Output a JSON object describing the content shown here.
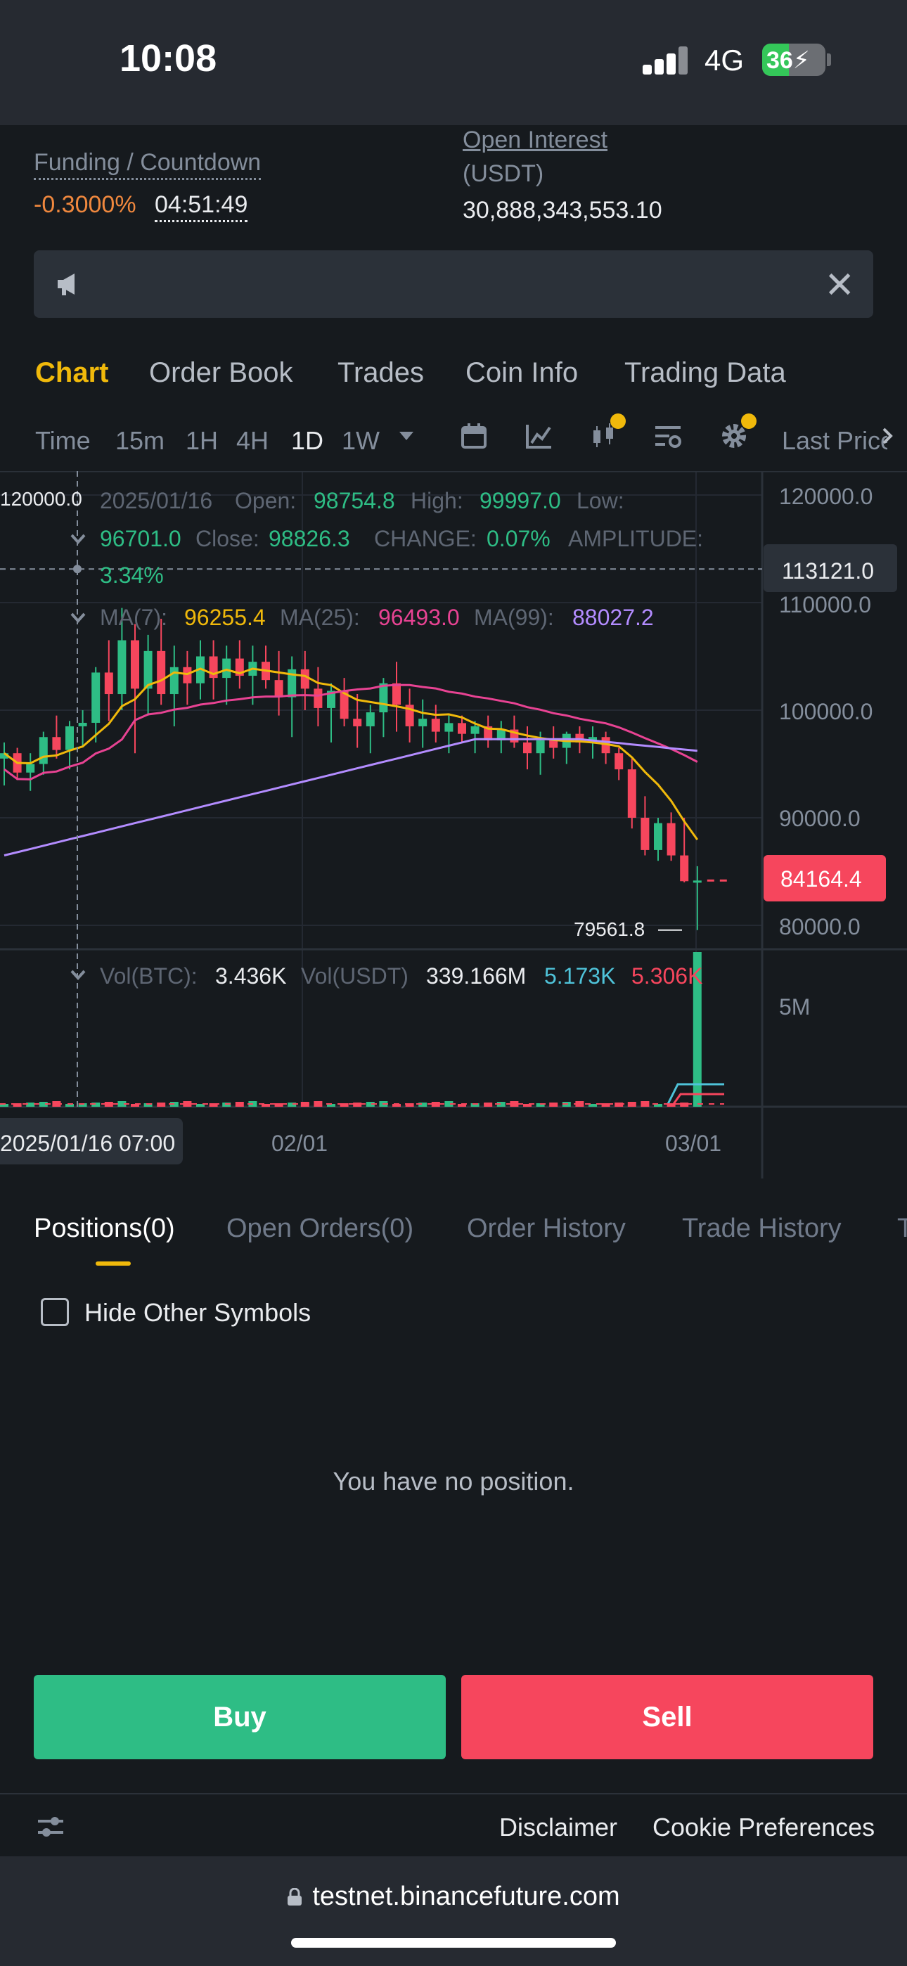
{
  "status_bar": {
    "time": "10:08",
    "network": "4G",
    "battery": "36"
  },
  "info": {
    "funding_label": "Funding / Countdown",
    "funding_rate": "-0.3000%",
    "countdown": "04:51:49",
    "open_interest_label": "Open Interest",
    "open_interest_unit": "(USDT)",
    "open_interest_value": "30,888,343,553.10"
  },
  "tabs": [
    "Chart",
    "Order Book",
    "Trades",
    "Coin Info",
    "Trading Data"
  ],
  "intervals": [
    "Time",
    "15m",
    "1H",
    "4H",
    "1D",
    "1W"
  ],
  "interval_active": "1D",
  "last_price_label": "Last Price",
  "chart": {
    "ohlc": {
      "date": "2025/01/16",
      "open_label": "Open:",
      "open": "98754.8",
      "high_label": "High:",
      "high": "99997.0",
      "low_label": "Low:",
      "low": "96701.0",
      "close_label": "Close:",
      "close": "98826.3",
      "change_label": "CHANGE:",
      "change": "0.07%",
      "amplitude_label": "AMPLITUDE:",
      "amplitude": "3.34%"
    },
    "ma": {
      "ma7_label": "MA(7):",
      "ma7": "96255.4",
      "ma25_label": "MA(25):",
      "ma25": "96493.0",
      "ma99_label": "MA(99):",
      "ma99": "88027.2"
    },
    "volume": {
      "btc_label": "Vol(BTC):",
      "btc": "3.436K",
      "usdt_label": "Vol(USDT)",
      "usdt": "339.166M",
      "v1": "5.173K",
      "v2": "5.306K"
    },
    "crosshair_price": "120000.0",
    "crosshair_level": "113121.0",
    "last_price": "84164.4",
    "low_marker": "79561.8",
    "crosshair_time": "2025/01/16 07:00",
    "x_labels": [
      "02/01",
      "03/01"
    ],
    "vol_axis": "5M"
  },
  "chart_data": {
    "type": "candlestick",
    "y_ticks": [
      120000.0,
      110000.0,
      100000.0,
      90000.0,
      80000.0
    ],
    "ylim": [
      78000,
      122000
    ],
    "x_tick_labels": [
      "02/01",
      "03/01"
    ],
    "ma_colors": {
      "ma7": "#f0b90b",
      "ma25": "#e84393",
      "ma99": "#b38cff"
    },
    "candles": [
      [
        95500,
        97000,
        93000,
        96000
      ],
      [
        96000,
        96500,
        93500,
        94200
      ],
      [
        94200,
        96000,
        92500,
        95000
      ],
      [
        95000,
        98000,
        94000,
        97500
      ],
      [
        97500,
        99500,
        95500,
        96300
      ],
      [
        96300,
        99000,
        94500,
        98500
      ],
      [
        98500,
        99997,
        96700,
        98826
      ],
      [
        98826,
        104000,
        97000,
        103500
      ],
      [
        103500,
        106500,
        99000,
        101500
      ],
      [
        101500,
        109500,
        100000,
        106500
      ],
      [
        106500,
        108000,
        96000,
        102000
      ],
      [
        102000,
        107000,
        99500,
        105500
      ],
      [
        105500,
        108500,
        100500,
        101500
      ],
      [
        101500,
        106000,
        98500,
        104000
      ],
      [
        104000,
        105500,
        100500,
        102500
      ],
      [
        102500,
        106500,
        101000,
        105000
      ],
      [
        105000,
        106500,
        101000,
        103000
      ],
      [
        103000,
        106000,
        100500,
        104800
      ],
      [
        104800,
        106500,
        102000,
        103200
      ],
      [
        103200,
        106000,
        100500,
        104500
      ],
      [
        104500,
        106000,
        102000,
        102800
      ],
      [
        102800,
        105500,
        99500,
        101200
      ],
      [
        101200,
        105000,
        97500,
        103800
      ],
      [
        103800,
        105500,
        100000,
        102000
      ],
      [
        102000,
        104000,
        98500,
        100200
      ],
      [
        100200,
        102500,
        97000,
        101800
      ],
      [
        101800,
        103000,
        98500,
        99200
      ],
      [
        99200,
        101500,
        96500,
        98500
      ],
      [
        98500,
        100500,
        96000,
        99800
      ],
      [
        99800,
        103000,
        97500,
        102500
      ],
      [
        102500,
        104500,
        98000,
        100500
      ],
      [
        100500,
        102000,
        97000,
        98500
      ],
      [
        98500,
        101000,
        96500,
        99200
      ],
      [
        99200,
        100500,
        97000,
        98000
      ],
      [
        98000,
        99500,
        96000,
        98800
      ],
      [
        98800,
        99500,
        97000,
        97800
      ],
      [
        97800,
        99000,
        96000,
        98500
      ],
      [
        98500,
        99500,
        96500,
        97200
      ],
      [
        97200,
        99000,
        96000,
        98200
      ],
      [
        98200,
        99500,
        96500,
        97000
      ],
      [
        97000,
        98500,
        94500,
        96000
      ],
      [
        96000,
        98000,
        94000,
        97200
      ],
      [
        97200,
        98500,
        95500,
        96500
      ],
      [
        96500,
        98000,
        95000,
        97800
      ],
      [
        97800,
        98500,
        96000,
        97000
      ],
      [
        97000,
        98500,
        95500,
        97500
      ],
      [
        97500,
        98000,
        95000,
        96000
      ],
      [
        96000,
        96500,
        93500,
        94500
      ],
      [
        94500,
        95500,
        89000,
        90000
      ],
      [
        90000,
        92000,
        86500,
        87000
      ],
      [
        87000,
        90000,
        86000,
        89500
      ],
      [
        89500,
        90500,
        86000,
        86500
      ],
      [
        86500,
        90000,
        84000,
        84100
      ],
      [
        84164,
        85500,
        79561,
        84164
      ]
    ]
  },
  "positions": {
    "tabs": [
      "Positions(0)",
      "Open Orders(0)",
      "Order History",
      "Trade History",
      "T"
    ],
    "hide_label": "Hide Other Symbols",
    "empty_text": "You have no position."
  },
  "actions": {
    "buy": "Buy",
    "sell": "Sell"
  },
  "footer": {
    "disclaimer": "Disclaimer",
    "cookie": "Cookie Preferences"
  },
  "url": "testnet.binancefuture.com",
  "colors": {
    "up": "#2ebd85",
    "down": "#f6465d",
    "accent": "#f0b90b",
    "background": "#161a1e"
  }
}
